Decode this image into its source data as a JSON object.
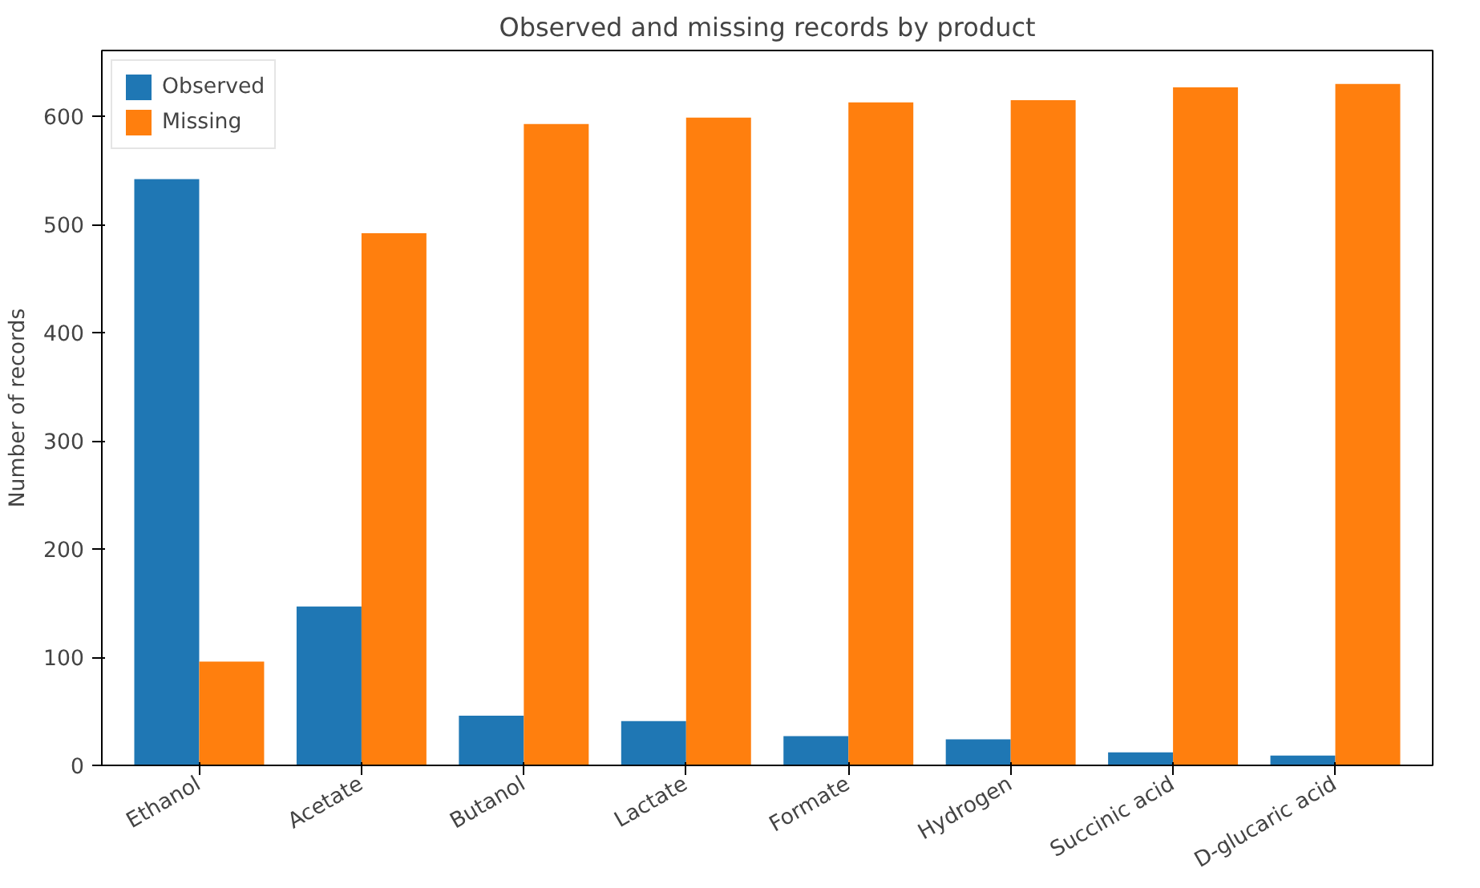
{
  "chart_data": {
    "type": "bar",
    "title": "Observed and missing records by product",
    "ylabel": "Number of records",
    "categories": [
      "Ethanol",
      "Acetate",
      "Butanol",
      "Lactate",
      "Formate",
      "Hydrogen",
      "Succinic acid",
      "D-glucaric acid"
    ],
    "series": [
      {
        "name": "Observed",
        "color": "#1f77b4",
        "values": [
          542,
          147,
          46,
          41,
          27,
          24,
          12,
          9
        ]
      },
      {
        "name": "Missing",
        "color": "#ff7f0e",
        "values": [
          96,
          492,
          593,
          599,
          613,
          615,
          627,
          630
        ]
      }
    ],
    "ylim": [
      0,
      661
    ],
    "yticks": [
      0,
      100,
      200,
      300,
      400,
      500,
      600
    ],
    "grid": false,
    "legend": "top left"
  }
}
